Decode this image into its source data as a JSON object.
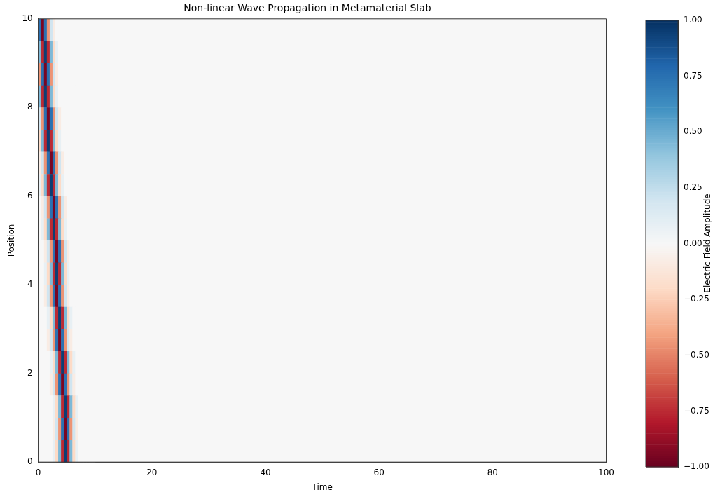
{
  "chart_data": {
    "type": "heatmap",
    "title": "Non-linear Wave Propagation in Metamaterial Slab",
    "xlabel": "Time",
    "ylabel": "Position",
    "clabel": "Electric Field Amplitude",
    "x": [
      0.25,
      0.75,
      1.25,
      1.75,
      2.25,
      2.75,
      3.25,
      3.75,
      4.25,
      4.75,
      5.25,
      5.75,
      6.25,
      6.75,
      7.25,
      7.75,
      8.25,
      8.75,
      9.25,
      9.75
    ],
    "y": [
      9.75,
      9.25,
      8.75,
      8.25,
      7.75,
      7.25,
      6.75,
      6.25,
      5.75,
      5.25,
      4.75,
      4.25,
      3.75,
      3.25,
      2.75,
      2.25,
      1.75,
      1.25,
      0.75,
      0.25
    ],
    "cells": [
      [
        0.75,
        -0.95,
        0.75,
        -0.45,
        0.2,
        -0.08,
        0,
        0,
        0,
        0,
        0,
        0,
        0,
        0,
        0,
        0,
        0,
        0,
        0,
        0
      ],
      [
        0.45,
        -0.75,
        0.95,
        -0.75,
        0.45,
        -0.2,
        0.08,
        0,
        0,
        0,
        0,
        0,
        0,
        0,
        0,
        0,
        0,
        0,
        0,
        0
      ],
      [
        -0.45,
        0.75,
        -0.95,
        0.75,
        -0.45,
        0.2,
        -0.08,
        0,
        0,
        0,
        0,
        0,
        0,
        0,
        0,
        0,
        0,
        0,
        0,
        0
      ],
      [
        0.45,
        -0.75,
        0.95,
        -0.75,
        0.45,
        -0.2,
        0.08,
        0,
        0,
        0,
        0,
        0,
        0,
        0,
        0,
        0,
        0,
        0,
        0,
        0
      ],
      [
        0.2,
        -0.45,
        0.75,
        -0.95,
        0.75,
        -0.45,
        0.2,
        -0.08,
        0,
        0,
        0,
        0,
        0,
        0,
        0,
        0,
        0,
        0,
        0,
        0
      ],
      [
        -0.2,
        0.45,
        -0.75,
        0.95,
        -0.75,
        0.45,
        -0.2,
        0.08,
        0,
        0,
        0,
        0,
        0,
        0,
        0,
        0,
        0,
        0,
        0,
        0
      ],
      [
        -0.08,
        0.2,
        -0.45,
        0.75,
        -0.95,
        0.75,
        -0.45,
        0.2,
        -0.08,
        0,
        0,
        0,
        0,
        0,
        0,
        0,
        0,
        0,
        0,
        0
      ],
      [
        0.08,
        -0.2,
        0.45,
        -0.75,
        0.95,
        -0.75,
        0.45,
        -0.2,
        0.08,
        0,
        0,
        0,
        0,
        0,
        0,
        0,
        0,
        0,
        0,
        0
      ],
      [
        0,
        -0.08,
        0.2,
        -0.45,
        0.75,
        -0.95,
        0.75,
        -0.45,
        0.2,
        -0.08,
        0,
        0,
        0,
        0,
        0,
        0,
        0,
        0,
        0,
        0
      ],
      [
        0,
        0.08,
        -0.2,
        0.45,
        -0.75,
        0.95,
        -0.75,
        0.45,
        -0.2,
        0.08,
        0,
        0,
        0,
        0,
        0,
        0,
        0,
        0,
        0,
        0
      ],
      [
        0,
        0,
        -0.08,
        0.2,
        -0.45,
        0.75,
        -0.95,
        0.75,
        -0.45,
        0.2,
        -0.08,
        0,
        0,
        0,
        0,
        0,
        0,
        0,
        0,
        0
      ],
      [
        0,
        0,
        0.08,
        -0.2,
        0.45,
        -0.75,
        0.95,
        -0.75,
        0.45,
        -0.2,
        0.08,
        0,
        0,
        0,
        0,
        0,
        0,
        0,
        0,
        0
      ],
      [
        0,
        0,
        -0.08,
        0.2,
        -0.45,
        0.75,
        -0.95,
        0.75,
        -0.45,
        0.2,
        -0.08,
        0,
        0,
        0,
        0,
        0,
        0,
        0,
        0,
        0
      ],
      [
        0,
        0,
        0,
        0.08,
        -0.2,
        0.45,
        -0.75,
        0.95,
        -0.75,
        0.45,
        -0.2,
        0.08,
        0,
        0,
        0,
        0,
        0,
        0,
        0,
        0
      ],
      [
        0,
        0,
        0,
        -0.08,
        0.2,
        -0.45,
        0.75,
        -0.95,
        0.75,
        -0.45,
        0.2,
        -0.08,
        0,
        0,
        0,
        0,
        0,
        0,
        0,
        0
      ],
      [
        0,
        0,
        0,
        0,
        0.08,
        -0.2,
        0.45,
        -0.75,
        0.95,
        -0.75,
        0.45,
        -0.2,
        0.08,
        0,
        0,
        0,
        0,
        0,
        0,
        0
      ],
      [
        0,
        0,
        0,
        0,
        -0.08,
        0.2,
        -0.45,
        0.75,
        -0.95,
        0.75,
        -0.45,
        0.2,
        -0.08,
        0,
        0,
        0,
        0,
        0,
        0,
        0
      ],
      [
        0,
        0,
        0,
        0,
        0,
        0.08,
        -0.2,
        0.45,
        -0.75,
        0.95,
        -0.75,
        0.45,
        -0.2,
        0.08,
        0,
        0,
        0,
        0,
        0,
        0
      ],
      [
        0,
        0,
        0,
        0,
        0,
        -0.08,
        0.2,
        -0.45,
        0.75,
        -0.95,
        0.75,
        -0.45,
        0.2,
        -0.08,
        0,
        0,
        0,
        0,
        0,
        0
      ],
      [
        0,
        0,
        0,
        0,
        0,
        0.08,
        -0.2,
        0.45,
        -0.75,
        0.95,
        -0.75,
        0.45,
        -0.2,
        0.08,
        0,
        0,
        0,
        0,
        0,
        0
      ]
    ],
    "xlim": [
      0,
      100
    ],
    "xticks": [
      0,
      20,
      40,
      60,
      80,
      100
    ],
    "ylim": [
      0,
      10
    ],
    "yticks": [
      0,
      2,
      4,
      6,
      8,
      10
    ],
    "clim": [
      -1,
      1
    ],
    "cticks": [
      {
        "value": -1,
        "label": "−1.00"
      },
      {
        "value": -0.75,
        "label": "−0.75"
      },
      {
        "value": -0.5,
        "label": "−0.50"
      },
      {
        "value": -0.25,
        "label": "−0.25"
      },
      {
        "value": 0,
        "label": "0.00"
      },
      {
        "value": 0.25,
        "label": "0.25"
      },
      {
        "value": 0.5,
        "label": "0.50"
      },
      {
        "value": 0.75,
        "label": "0.75"
      },
      {
        "value": 1,
        "label": "1.00"
      }
    ],
    "grid": false,
    "legend": false
  }
}
